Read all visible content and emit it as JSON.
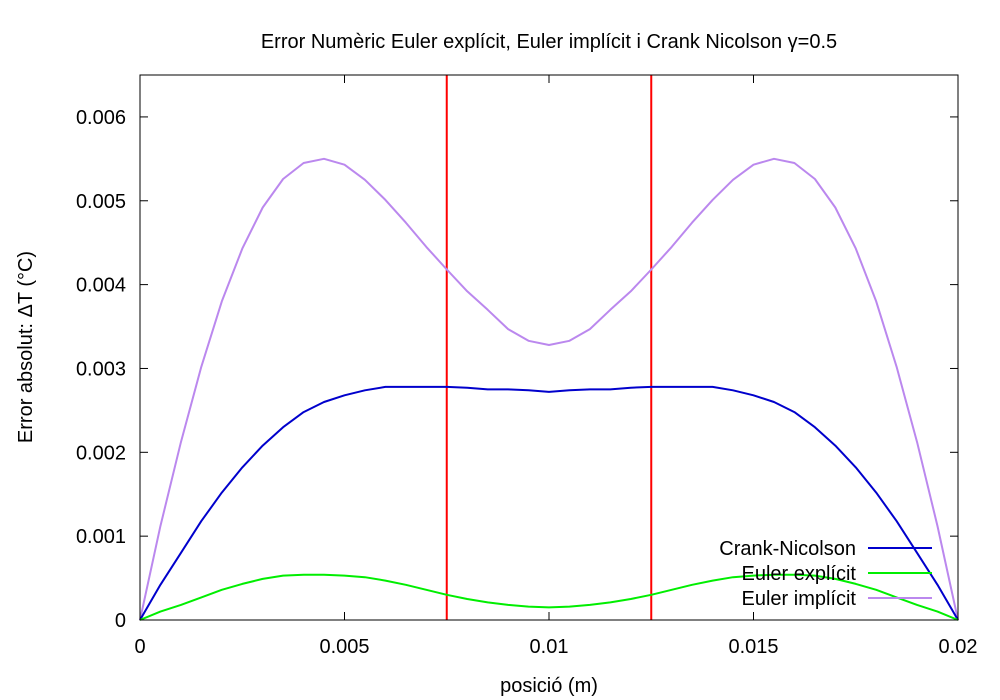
{
  "chart_data": {
    "type": "line",
    "title": "Error Numèric Euler explícit, Euler implícit i Crank Nicolson γ=0.5",
    "xlabel": "posició (m)",
    "ylabel": "Error absolut: ΔT (°C)",
    "xlim": [
      0,
      0.02
    ],
    "ylim": [
      0,
      0.0065
    ],
    "xticks": [
      0,
      0.005,
      0.01,
      0.015,
      0.02
    ],
    "xtick_labels": [
      "0",
      "0.005",
      "0.01",
      "0.015",
      "0.02"
    ],
    "yticks": [
      0,
      0.001,
      0.002,
      0.003,
      0.004,
      0.005,
      0.006
    ],
    "ytick_labels": [
      "0",
      "0.001",
      "0.002",
      "0.003",
      "0.004",
      "0.005",
      "0.006"
    ],
    "grid": false,
    "legend_position": "bottom-right",
    "vertical_lines": [
      {
        "x": 0.0075,
        "color": "#ff0000"
      },
      {
        "x": 0.0125,
        "color": "#ff0000"
      }
    ],
    "series": [
      {
        "name": "Crank-Nicolson",
        "color": "#0000cc",
        "x": [
          0,
          0.0005,
          0.001,
          0.0015,
          0.002,
          0.0025,
          0.003,
          0.0035,
          0.004,
          0.0045,
          0.005,
          0.0055,
          0.006,
          0.0065,
          0.007,
          0.0075,
          0.008,
          0.0085,
          0.009,
          0.0095,
          0.01,
          0.0105,
          0.011,
          0.0115,
          0.012,
          0.0125,
          0.013,
          0.0135,
          0.014,
          0.0145,
          0.015,
          0.0155,
          0.016,
          0.0165,
          0.017,
          0.0175,
          0.018,
          0.0185,
          0.019,
          0.0195,
          0.02
        ],
        "y": [
          0,
          0.00042,
          0.0008,
          0.00118,
          0.00152,
          0.00182,
          0.00208,
          0.0023,
          0.00248,
          0.0026,
          0.00268,
          0.00274,
          0.00278,
          0.00278,
          0.00278,
          0.00278,
          0.00277,
          0.00275,
          0.00275,
          0.00274,
          0.00272,
          0.00274,
          0.00275,
          0.00275,
          0.00277,
          0.00278,
          0.00278,
          0.00278,
          0.00278,
          0.00274,
          0.00268,
          0.0026,
          0.00248,
          0.0023,
          0.00208,
          0.00182,
          0.00152,
          0.00118,
          0.0008,
          0.00042,
          0
        ]
      },
      {
        "name": "Euler explícit",
        "color": "#00ee00",
        "x": [
          0,
          0.0005,
          0.001,
          0.0015,
          0.002,
          0.0025,
          0.003,
          0.0035,
          0.004,
          0.0045,
          0.005,
          0.0055,
          0.006,
          0.0065,
          0.007,
          0.0075,
          0.008,
          0.0085,
          0.009,
          0.0095,
          0.01,
          0.0105,
          0.011,
          0.0115,
          0.012,
          0.0125,
          0.013,
          0.0135,
          0.014,
          0.0145,
          0.015,
          0.0155,
          0.016,
          0.0165,
          0.017,
          0.0175,
          0.018,
          0.0185,
          0.019,
          0.0195,
          0.02
        ],
        "y": [
          0,
          0.0001,
          0.00018,
          0.00027,
          0.00036,
          0.00043,
          0.00049,
          0.00053,
          0.00054,
          0.00054,
          0.00053,
          0.00051,
          0.00047,
          0.00042,
          0.00036,
          0.0003,
          0.00025,
          0.00021,
          0.00018,
          0.00016,
          0.00015,
          0.00016,
          0.00018,
          0.00021,
          0.00025,
          0.0003,
          0.00036,
          0.00042,
          0.00047,
          0.00051,
          0.00053,
          0.00054,
          0.00054,
          0.00053,
          0.00049,
          0.00043,
          0.00036,
          0.00027,
          0.00018,
          0.0001,
          0
        ]
      },
      {
        "name": "Euler implícit",
        "color": "#bb88ee",
        "x": [
          0,
          0.0005,
          0.001,
          0.0015,
          0.002,
          0.0025,
          0.003,
          0.0035,
          0.004,
          0.0045,
          0.005,
          0.0055,
          0.006,
          0.0065,
          0.007,
          0.0075,
          0.008,
          0.0085,
          0.009,
          0.0095,
          0.01,
          0.0105,
          0.011,
          0.0115,
          0.012,
          0.0125,
          0.013,
          0.0135,
          0.014,
          0.0145,
          0.015,
          0.0155,
          0.016,
          0.0165,
          0.017,
          0.0175,
          0.018,
          0.0185,
          0.019,
          0.0195,
          0.02
        ],
        "y": [
          0,
          0.00112,
          0.00212,
          0.00302,
          0.0038,
          0.00443,
          0.00492,
          0.00526,
          0.00545,
          0.0055,
          0.00543,
          0.00525,
          0.00501,
          0.00474,
          0.00445,
          0.00418,
          0.00392,
          0.0037,
          0.00347,
          0.00333,
          0.00328,
          0.00333,
          0.00347,
          0.0037,
          0.00392,
          0.00418,
          0.00445,
          0.00474,
          0.00501,
          0.00525,
          0.00543,
          0.0055,
          0.00545,
          0.00526,
          0.00492,
          0.00443,
          0.0038,
          0.00302,
          0.00212,
          0.00112,
          0
        ]
      }
    ]
  }
}
